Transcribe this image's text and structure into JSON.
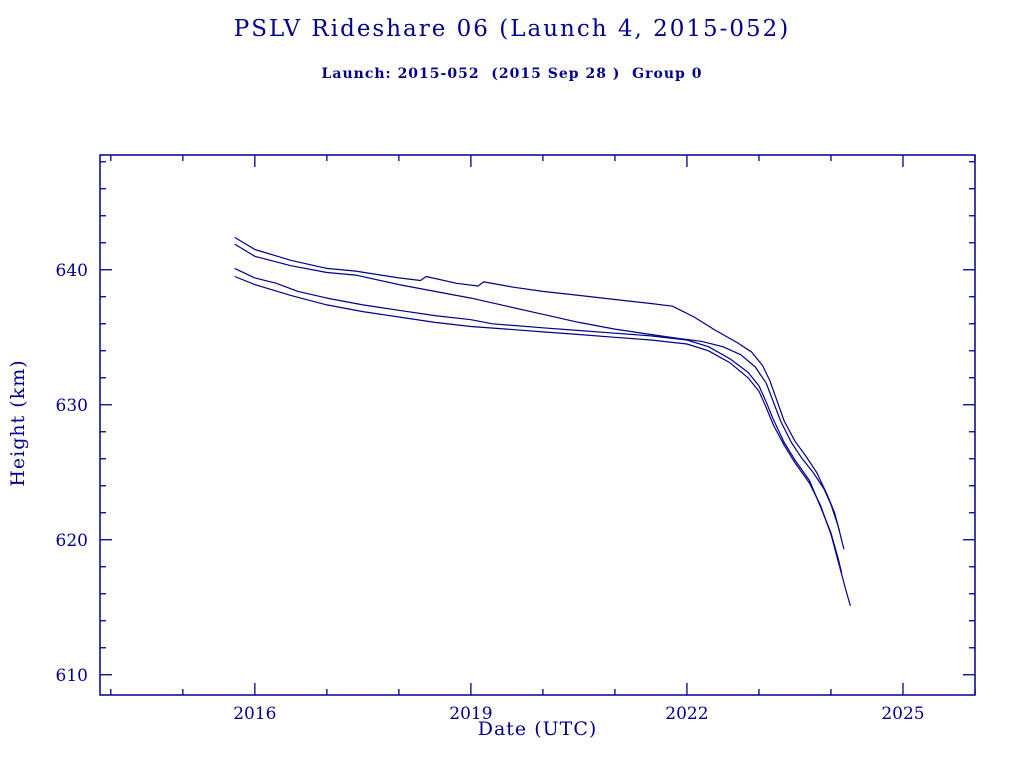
{
  "page": {
    "background": "#ffffff",
    "accent": "#00008b"
  },
  "chart_data": {
    "type": "line",
    "title": "PSLV Rideshare 06 (Launch 4, 2015-052)",
    "subtitle": "Launch: 2015-052  (2015 Sep 28 )  Group 0",
    "xlabel": "Date (UTC)",
    "ylabel": "Height (km)",
    "xlim": [
      2013.85,
      2026.0
    ],
    "ylim": [
      608.5,
      648.5
    ],
    "xticks": [
      2016,
      2019,
      2022,
      2025
    ],
    "yticks": [
      610,
      620,
      630,
      640
    ],
    "x_minor_step": 1,
    "y_minor_step": 2,
    "grid": false,
    "legend": "none",
    "line_color": "#00008b",
    "series": [
      {
        "name": "series-1",
        "points": [
          [
            2015.72,
            642.4
          ],
          [
            2016.0,
            641.5
          ],
          [
            2016.5,
            640.7
          ],
          [
            2017.0,
            640.1
          ],
          [
            2017.4,
            639.9
          ],
          [
            2018.0,
            639.4
          ],
          [
            2018.3,
            639.2
          ],
          [
            2018.38,
            639.5
          ],
          [
            2018.8,
            639.0
          ],
          [
            2019.1,
            638.8
          ],
          [
            2019.18,
            639.1
          ],
          [
            2019.6,
            638.7
          ],
          [
            2020.0,
            638.4
          ],
          [
            2020.5,
            638.1
          ],
          [
            2021.0,
            637.8
          ],
          [
            2021.5,
            637.5
          ],
          [
            2021.8,
            637.3
          ],
          [
            2022.1,
            636.5
          ],
          [
            2022.4,
            635.5
          ],
          [
            2022.7,
            634.6
          ],
          [
            2022.9,
            633.9
          ],
          [
            2023.05,
            632.9
          ],
          [
            2023.15,
            631.8
          ],
          [
            2023.25,
            630.3
          ],
          [
            2023.35,
            628.8
          ],
          [
            2023.5,
            627.3
          ],
          [
            2023.65,
            626.2
          ],
          [
            2023.8,
            625.0
          ],
          [
            2023.95,
            623.3
          ],
          [
            2024.05,
            622.0
          ],
          [
            2024.12,
            620.6
          ]
        ]
      },
      {
        "name": "series-2",
        "points": [
          [
            2015.72,
            641.9
          ],
          [
            2016.0,
            641.0
          ],
          [
            2016.5,
            640.3
          ],
          [
            2017.0,
            639.8
          ],
          [
            2017.4,
            639.6
          ],
          [
            2018.0,
            638.9
          ],
          [
            2018.5,
            638.4
          ],
          [
            2019.0,
            637.9
          ],
          [
            2019.5,
            637.3
          ],
          [
            2020.0,
            636.7
          ],
          [
            2020.5,
            636.1
          ],
          [
            2021.0,
            635.6
          ],
          [
            2021.5,
            635.2
          ],
          [
            2021.9,
            634.9
          ],
          [
            2022.2,
            634.7
          ],
          [
            2022.5,
            634.3
          ],
          [
            2022.75,
            633.7
          ],
          [
            2022.95,
            632.8
          ],
          [
            2023.1,
            631.6
          ],
          [
            2023.2,
            630.2
          ],
          [
            2023.3,
            628.8
          ],
          [
            2023.45,
            627.2
          ],
          [
            2023.6,
            626.0
          ],
          [
            2023.75,
            625.0
          ],
          [
            2023.9,
            623.8
          ],
          [
            2024.0,
            622.6
          ],
          [
            2024.1,
            621.0
          ],
          [
            2024.18,
            619.3
          ]
        ]
      },
      {
        "name": "series-3",
        "points": [
          [
            2015.72,
            640.1
          ],
          [
            2016.0,
            639.4
          ],
          [
            2016.3,
            639.0
          ],
          [
            2016.6,
            638.4
          ],
          [
            2017.0,
            637.9
          ],
          [
            2017.5,
            637.4
          ],
          [
            2018.0,
            637.0
          ],
          [
            2018.5,
            636.6
          ],
          [
            2019.0,
            636.3
          ],
          [
            2019.3,
            636.0
          ],
          [
            2020.0,
            635.7
          ],
          [
            2020.5,
            635.5
          ],
          [
            2021.0,
            635.3
          ],
          [
            2021.5,
            635.1
          ],
          [
            2022.0,
            634.8
          ],
          [
            2022.3,
            634.3
          ],
          [
            2022.6,
            633.4
          ],
          [
            2022.85,
            632.4
          ],
          [
            2023.0,
            631.4
          ],
          [
            2023.1,
            630.2
          ],
          [
            2023.2,
            628.9
          ],
          [
            2023.35,
            627.2
          ],
          [
            2023.5,
            625.9
          ],
          [
            2023.7,
            624.4
          ],
          [
            2023.85,
            622.5
          ],
          [
            2024.0,
            620.5
          ],
          [
            2024.1,
            618.6
          ],
          [
            2024.15,
            617.5
          ]
        ]
      },
      {
        "name": "series-4",
        "points": [
          [
            2015.72,
            639.5
          ],
          [
            2016.0,
            638.9
          ],
          [
            2016.5,
            638.1
          ],
          [
            2017.0,
            637.4
          ],
          [
            2017.5,
            636.9
          ],
          [
            2018.0,
            636.5
          ],
          [
            2018.5,
            636.1
          ],
          [
            2019.0,
            635.8
          ],
          [
            2019.5,
            635.6
          ],
          [
            2020.0,
            635.4
          ],
          [
            2020.5,
            635.2
          ],
          [
            2021.0,
            635.0
          ],
          [
            2021.5,
            634.8
          ],
          [
            2022.0,
            634.5
          ],
          [
            2022.3,
            634.0
          ],
          [
            2022.6,
            633.1
          ],
          [
            2022.85,
            632.0
          ],
          [
            2023.0,
            631.0
          ],
          [
            2023.1,
            629.8
          ],
          [
            2023.2,
            628.5
          ],
          [
            2023.35,
            627.0
          ],
          [
            2023.5,
            625.7
          ],
          [
            2023.7,
            624.2
          ],
          [
            2023.85,
            622.6
          ],
          [
            2024.0,
            620.4
          ],
          [
            2024.1,
            618.4
          ],
          [
            2024.2,
            616.4
          ],
          [
            2024.27,
            615.1
          ]
        ]
      }
    ]
  }
}
